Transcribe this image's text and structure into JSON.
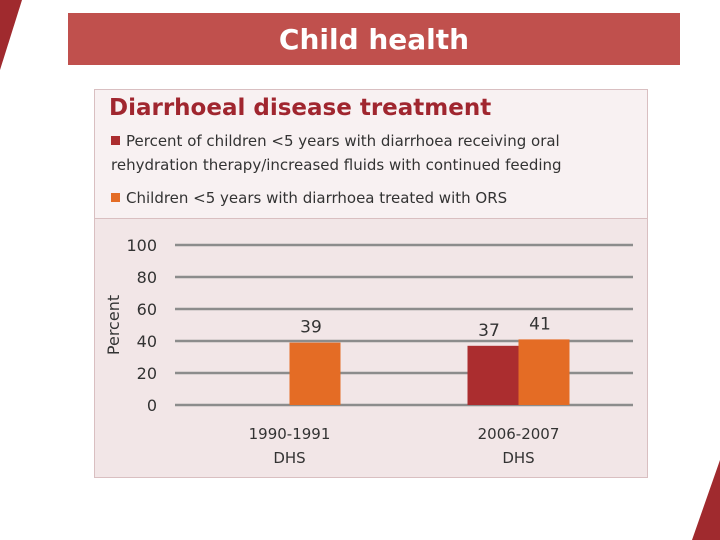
{
  "slide": {
    "title": "Child health"
  },
  "colors": {
    "accent": "#c0504d",
    "dark_red": "#a02a2e",
    "ors_orange": "#e46c25",
    "ort_red": "#ab2d2f"
  },
  "chart_data": {
    "type": "bar",
    "title": "Diarrhoeal disease treatment",
    "ylabel": "Percent",
    "xlabel": "",
    "ylim": [
      0,
      100
    ],
    "yticks": [
      0,
      20,
      40,
      60,
      80,
      100
    ],
    "categories": [
      [
        "1990-1991",
        "DHS"
      ],
      [
        "2006-2007",
        "DHS"
      ]
    ],
    "series": [
      {
        "name": "Percent of children <5 years with diarrhoea receiving oral rehydration therapy/increased fluids with continued feeding",
        "color": "#ab2d2f",
        "values": [
          null,
          37
        ]
      },
      {
        "name": "Children <5 years with diarrhoea treated with ORS",
        "color": "#e46c25",
        "values": [
          39,
          41
        ]
      }
    ],
    "grid": true,
    "legend": "top"
  }
}
